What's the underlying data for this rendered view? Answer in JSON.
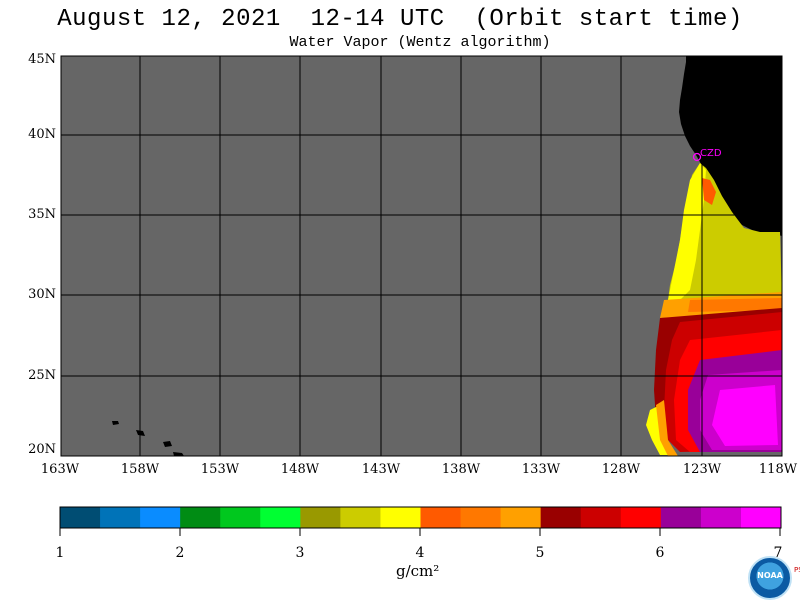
{
  "header": {
    "title": "August 12, 2021  12-14 UTC  (Orbit start time)",
    "subtitle": "Water Vapor (Wentz algorithm)"
  },
  "map": {
    "lat_labels": [
      "45N",
      "40N",
      "35N",
      "30N",
      "25N",
      "20N"
    ],
    "lon_labels": [
      "163W",
      "158W",
      "153W",
      "148W",
      "143W",
      "138W",
      "133W",
      "128W",
      "123W",
      "118W"
    ],
    "station_label": "CZD",
    "colors": {
      "ocean_no_data": "#666666",
      "land": "#000000",
      "grid": "#000000",
      "station": "#ff00ff"
    }
  },
  "colorbar": {
    "labels": [
      "1",
      "2",
      "3",
      "4",
      "5",
      "6",
      "7"
    ],
    "units": "g/cm²",
    "colors": [
      "#004d73",
      "#0073b8",
      "#0a8cff",
      "#008c14",
      "#00c81e",
      "#00ff32",
      "#999900",
      "#cccc00",
      "#ffff00",
      "#ff5a00",
      "#ff7800",
      "#ffa000",
      "#990000",
      "#cc0000",
      "#ff0000",
      "#990099",
      "#cc00cc",
      "#ff00ff"
    ]
  },
  "logo": {
    "text": "NOAA",
    "side_text": "PSL"
  }
}
